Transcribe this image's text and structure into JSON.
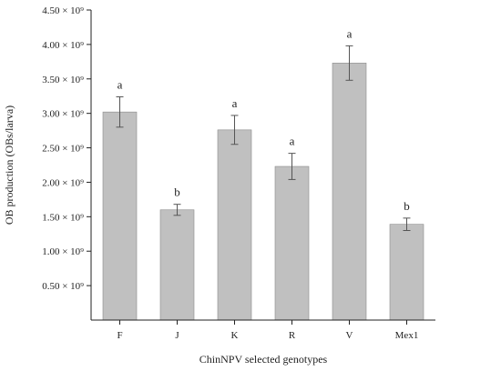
{
  "chart_data": {
    "type": "bar",
    "title": "",
    "xlabel": "ChinNPV selected genotypes",
    "ylabel": "OB production (OBs/larva)",
    "ylim": [
      0,
      4500000000.0
    ],
    "grid": false,
    "categories": [
      "F",
      "J",
      "K",
      "R",
      "V",
      "Mex1"
    ],
    "values": [
      3020000000.0,
      1600000000.0,
      2760000000.0,
      2230000000.0,
      3730000000.0,
      1390000000.0
    ],
    "errors": [
      220000000.0,
      80000000.0,
      210000000.0,
      190000000.0,
      250000000.0,
      90000000.0
    ],
    "significance_labels": [
      "a",
      "b",
      "a",
      "a",
      "a",
      "b"
    ],
    "y_ticks": [
      {
        "value": 500000000.0,
        "label": "0.50 × 10⁹"
      },
      {
        "value": 1000000000.0,
        "label": "1.00 × 10⁹"
      },
      {
        "value": 1500000000.0,
        "label": "1.50 × 10⁹"
      },
      {
        "value": 2000000000.0,
        "label": "2.00 × 10⁹"
      },
      {
        "value": 2500000000.0,
        "label": "2.50 × 10⁹"
      },
      {
        "value": 3000000000.0,
        "label": "3.00 × 10⁹"
      },
      {
        "value": 3500000000.0,
        "label": "3.50 × 10⁹"
      },
      {
        "value": 4000000000.0,
        "label": "4.00 × 10⁹"
      },
      {
        "value": 4500000000.0,
        "label": "4.50 × 10⁹"
      }
    ],
    "colors": {
      "bar": "#c0c0c0"
    }
  }
}
